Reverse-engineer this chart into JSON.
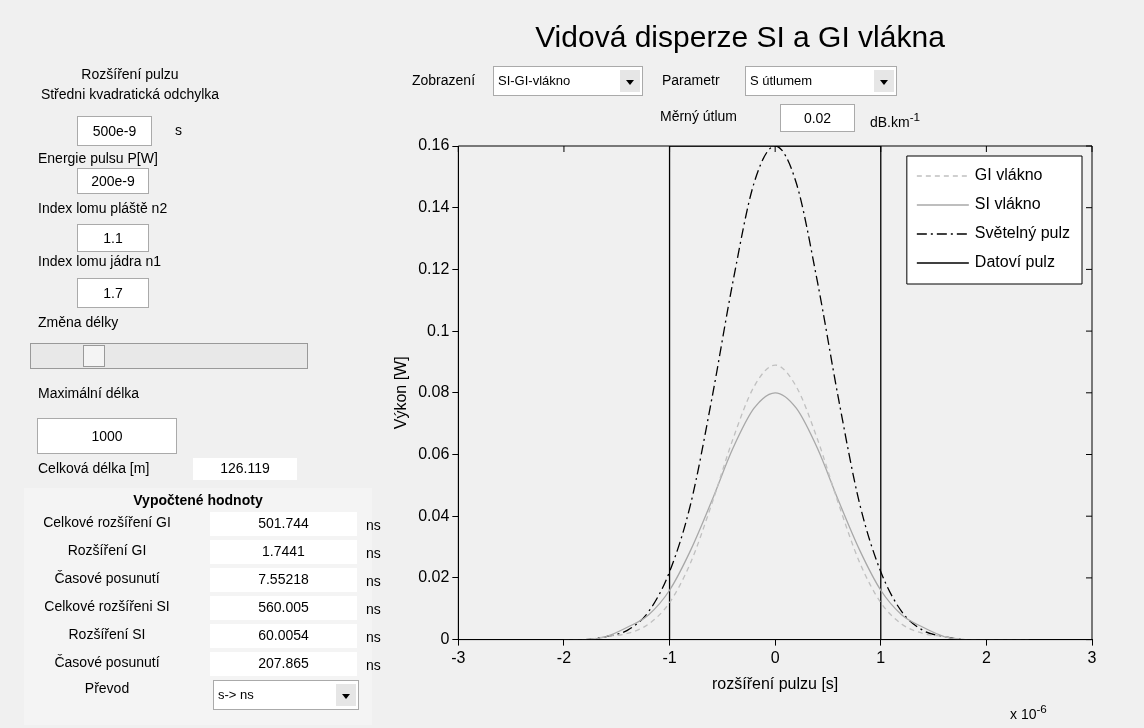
{
  "chart_data": [
    {
      "type": "other",
      "annotations": [
        "Rozšíření pulzu",
        "Středni kvadratická  odchylka",
        "500e-9",
        "s",
        "Energie pulsu P[W]",
        "200e-9",
        "Index lomu pláště n2",
        "1.1",
        "Index lomu jádra n1",
        "1.7",
        "Změna délky",
        "Maximální délka",
        "1000",
        "Celková délka [m]",
        "126.119",
        "Vypočtené hodnoty",
        "Celkové rozšíření GI",
        "501.744",
        "ns",
        "Rozšíření GI",
        "1.7441",
        "ns",
        "Časové posunutí",
        "7.55218",
        "ns",
        "Celkové rozšířeni SI",
        "560.005",
        "ns",
        "Rozšíření SI",
        "60.0054",
        "ns",
        "Časové posunutí",
        "207.865",
        "ns",
        "Převod",
        "s-> ns"
      ]
    },
    {
      "type": "line",
      "title": "Vidová disperze SI a GI vlákna",
      "xlabel": "rozšíření pulzu [s]",
      "ylabel": "Výkon [W]",
      "annotations": [
        "Zobrazení",
        "SI-GI-vlákno",
        "Parametr",
        "S útlumem",
        "Měrný útlum",
        "0.02",
        "dB.km$^{-1}$",
        "x 10$^{-6}$"
      ],
      "xlim": [
        -3,
        3
      ],
      "xticks": [
        -3,
        -2,
        -1,
        0,
        1,
        2,
        3
      ],
      "ylim": [
        0,
        0.16
      ],
      "yticks": [
        0,
        0.02,
        0.04,
        0.06,
        0.08,
        0.1,
        0.12,
        0.14,
        0.16
      ],
      "legend": "top right",
      "grid": false,
      "series": [
        {
          "name": "GI vlákno",
          "color": "#c0c0c0",
          "line_style": "dashed",
          "x": [
            -2,
            -1.8,
            -1.6,
            -1.4,
            -1.2,
            -1,
            -0.8,
            -0.6,
            -0.4,
            -0.2,
            0,
            0.2,
            0.4,
            0.6,
            0.8,
            1,
            1.2,
            1.4,
            1.6,
            1.8,
            2,
            2.2,
            2.4
          ],
          "values": [
            0,
            0,
            0.001,
            0.002,
            0.005,
            0.012,
            0.025,
            0.044,
            0.065,
            0.082,
            0.089,
            0.082,
            0.065,
            0.044,
            0.025,
            0.012,
            0.005,
            0.002,
            0.001,
            0,
            0,
            0,
            0
          ]
        },
        {
          "name": "SI vlákno",
          "color": "#a8a8a8",
          "line_style": "solid",
          "x": [
            -2,
            -1.8,
            -1.6,
            -1.4,
            -1.2,
            -1,
            -0.8,
            -0.6,
            -0.4,
            -0.2,
            0,
            0.2,
            0.4,
            0.6,
            0.8,
            1,
            1.2,
            1.4,
            1.6,
            1.8,
            2,
            2.2,
            2.4
          ],
          "values": [
            0,
            0,
            0.001,
            0.004,
            0.008,
            0.016,
            0.029,
            0.045,
            0.062,
            0.075,
            0.08,
            0.075,
            0.062,
            0.045,
            0.029,
            0.016,
            0.008,
            0.004,
            0.001,
            0,
            0,
            0,
            0
          ]
        },
        {
          "name": "Světelný pulz",
          "color": "#000000",
          "line_style": "dashdot",
          "x": [
            -2,
            -1.8,
            -1.6,
            -1.4,
            -1.2,
            -1,
            -0.8,
            -0.6,
            -0.4,
            -0.2,
            0,
            0.2,
            0.4,
            0.6,
            0.8,
            1,
            1.2,
            1.4,
            1.6,
            1.8,
            2,
            2.2,
            2.4
          ],
          "values": [
            0,
            0,
            0.001,
            0.003,
            0.009,
            0.022,
            0.044,
            0.078,
            0.116,
            0.148,
            0.16,
            0.148,
            0.116,
            0.078,
            0.044,
            0.022,
            0.009,
            0.003,
            0.001,
            0,
            0,
            0,
            0
          ]
        },
        {
          "name": "Datoví pulz",
          "color": "#000000",
          "line_style": "solid",
          "x": [
            -2.5,
            -1,
            -1,
            1,
            1,
            2.5
          ],
          "values": [
            0,
            0,
            0.16,
            0.16,
            0,
            0
          ]
        }
      ]
    }
  ]
}
